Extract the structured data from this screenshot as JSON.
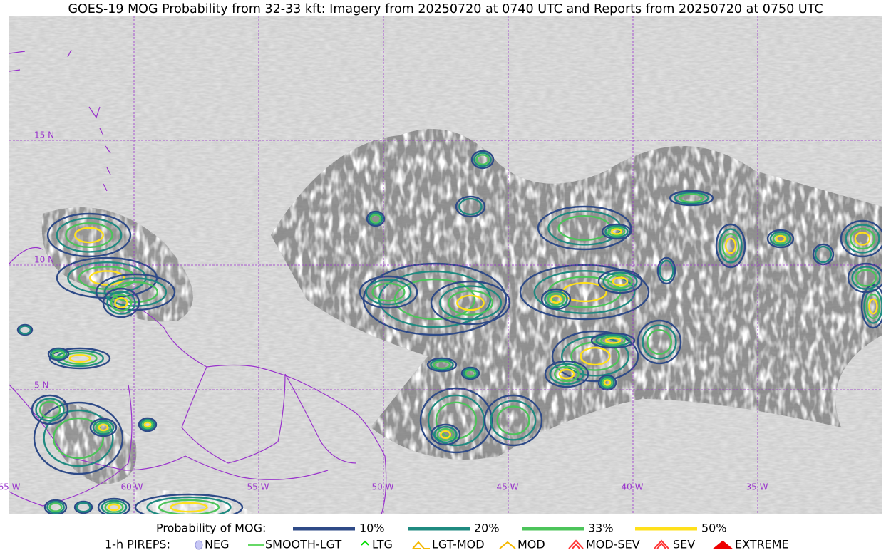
{
  "title": "GOES-19 MOG Probability from 32-33 kft: Imagery from 20250720 at 0740 UTC and Reports from 20250720 at 0750 UTC",
  "map": {
    "lat_labels": [
      "15 N",
      "10 N",
      "5 N"
    ],
    "lon_labels": [
      "65 W",
      "60 W",
      "55 W",
      "50 W",
      "45 W",
      "40 W",
      "35 W"
    ]
  },
  "legend": {
    "probability_title": "Probability of MOG:",
    "probability_levels": [
      {
        "label": "10%",
        "color": "#2e4a87"
      },
      {
        "label": "20%",
        "color": "#1f8a80"
      },
      {
        "label": "33%",
        "color": "#4cc45a"
      },
      {
        "label": "50%",
        "color": "#ffe01a"
      }
    ],
    "pireps_title": "1-h PIREPS:",
    "pireps": [
      {
        "label": "NEG",
        "color": "#c7c7f5"
      },
      {
        "label": "SMOOTH-LGT",
        "color": "#33cc33"
      },
      {
        "label": "LTG",
        "color": "#00dd00"
      },
      {
        "label": "LGT-MOD",
        "color": "#f5b800"
      },
      {
        "label": "MOD",
        "color": "#f5b800"
      },
      {
        "label": "MOD-SEV",
        "color": "#ff3333"
      },
      {
        "label": "SEV",
        "color": "#ff3333"
      },
      {
        "label": "EXTREME",
        "color": "#ee0000"
      }
    ]
  }
}
